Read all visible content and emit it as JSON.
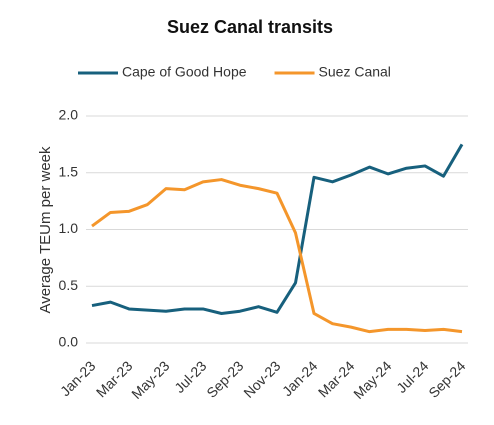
{
  "chart_data": {
    "type": "line",
    "title": "Suez Canal transits",
    "y_label": "Average TEUm per week",
    "categories": [
      "Jan-23",
      null,
      "Mar-23",
      null,
      "May-23",
      null,
      "Jul-23",
      null,
      "Sep-23",
      null,
      "Nov-23",
      null,
      "Jan-24",
      null,
      "Mar-24",
      null,
      "May-24",
      null,
      "Jul-24",
      null,
      "Sep-24"
    ],
    "series": [
      {
        "name": "Cape of Good Hope",
        "color": "#17607d",
        "values": [
          0.33,
          0.36,
          0.3,
          0.29,
          0.28,
          0.3,
          0.3,
          0.26,
          0.28,
          0.32,
          0.27,
          0.53,
          1.46,
          1.42,
          1.48,
          1.55,
          1.49,
          1.54,
          1.56,
          1.47,
          1.75
        ]
      },
      {
        "name": "Suez Canal",
        "color": "#f4962b",
        "values": [
          1.03,
          1.15,
          1.16,
          1.22,
          1.36,
          1.35,
          1.42,
          1.44,
          1.39,
          1.36,
          1.32,
          0.97,
          0.26,
          0.17,
          0.14,
          0.1,
          0.12,
          0.12,
          0.11,
          0.12,
          0.1
        ]
      }
    ],
    "ylim": [
      0,
      2
    ],
    "yticks": [
      {
        "value": 0,
        "label": "0.0"
      },
      0.5,
      {
        "value": 1,
        "label": "1.0"
      },
      1.5,
      {
        "value": 2,
        "label": "2.0"
      }
    ],
    "grid": true,
    "legend": "top"
  }
}
